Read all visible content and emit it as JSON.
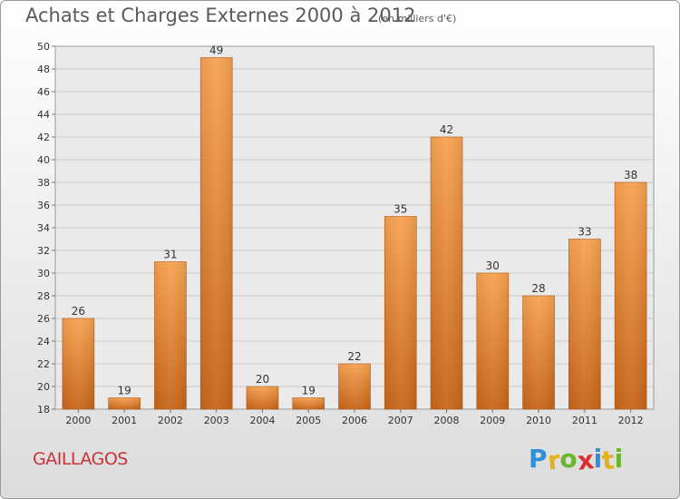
{
  "chart_data": {
    "type": "bar",
    "title": "Achats et Charges Externes 2000 à 2012",
    "subtitle": "(en milliers d'€)",
    "categories": [
      "2000",
      "2001",
      "2002",
      "2003",
      "2004",
      "2005",
      "2006",
      "2007",
      "2008",
      "2009",
      "2010",
      "2011",
      "2012"
    ],
    "values": [
      26,
      19,
      31,
      49,
      20,
      19,
      22,
      35,
      42,
      30,
      28,
      33,
      38
    ],
    "ylim": [
      18,
      50
    ],
    "yticks": [
      18,
      20,
      22,
      24,
      26,
      28,
      30,
      32,
      34,
      36,
      38,
      40,
      42,
      44,
      46,
      48,
      50
    ],
    "grid": true,
    "bar_color_top": "#f7a352",
    "bar_color_bottom": "#c8661a"
  },
  "commune": "GAILLAGOS",
  "brand": {
    "letters": [
      "P",
      "r",
      "o",
      "x",
      "i",
      "t",
      "i"
    ],
    "colors": [
      "#2f8fd8",
      "#e2b21c",
      "#6bb52b",
      "#d9302f",
      "#2f8fd8",
      "#e2b21c",
      "#6bb52b"
    ]
  }
}
